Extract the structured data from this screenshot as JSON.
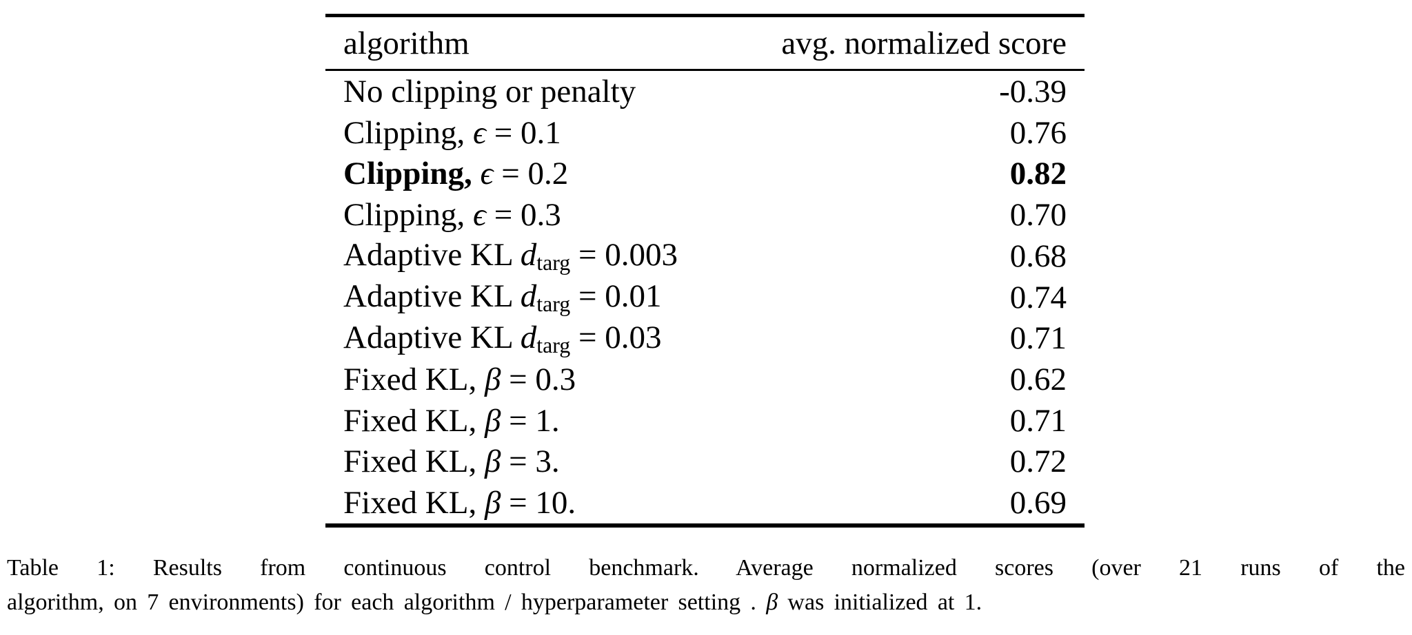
{
  "page": {
    "background": "#ffffff",
    "text_color": "#000000",
    "rule_color": "#000000"
  },
  "table": {
    "header": {
      "algorithm": "algorithm",
      "score": "avg. normalized score"
    },
    "rows": [
      {
        "algorithm": [
          {
            "t": "No clipping or penalty",
            "s": "plain"
          }
        ],
        "score": "-0.39",
        "score_bold": false
      },
      {
        "algorithm": [
          {
            "t": "Clipping, ",
            "s": "plain"
          },
          {
            "t": "ϵ",
            "s": "math"
          },
          {
            "t": " = 0.1",
            "s": "plain"
          }
        ],
        "score": "0.76",
        "score_bold": false
      },
      {
        "algorithm": [
          {
            "t": "Clipping, ",
            "s": "plain",
            "b": true
          },
          {
            "t": "ϵ",
            "s": "math"
          },
          {
            "t": " = 0.2",
            "s": "plain"
          }
        ],
        "score": "0.82",
        "score_bold": true
      },
      {
        "algorithm": [
          {
            "t": "Clipping, ",
            "s": "plain"
          },
          {
            "t": "ϵ",
            "s": "math"
          },
          {
            "t": " = 0.3",
            "s": "plain"
          }
        ],
        "score": "0.70",
        "score_bold": false
      },
      {
        "algorithm": [
          {
            "t": "Adaptive KL ",
            "s": "plain"
          },
          {
            "t": "d",
            "s": "math"
          },
          {
            "t": "targ",
            "s": "sub"
          },
          {
            "t": " = 0.003",
            "s": "plain"
          }
        ],
        "score": "0.68",
        "score_bold": false
      },
      {
        "algorithm": [
          {
            "t": "Adaptive KL ",
            "s": "plain"
          },
          {
            "t": "d",
            "s": "math"
          },
          {
            "t": "targ",
            "s": "sub"
          },
          {
            "t": " = 0.01",
            "s": "plain"
          }
        ],
        "score": "0.74",
        "score_bold": false
      },
      {
        "algorithm": [
          {
            "t": "Adaptive KL ",
            "s": "plain"
          },
          {
            "t": "d",
            "s": "math"
          },
          {
            "t": "targ",
            "s": "sub"
          },
          {
            "t": " = 0.03",
            "s": "plain"
          }
        ],
        "score": "0.71",
        "score_bold": false
      },
      {
        "algorithm": [
          {
            "t": "Fixed KL, ",
            "s": "plain"
          },
          {
            "t": "β",
            "s": "math"
          },
          {
            "t": " = 0.3",
            "s": "plain"
          }
        ],
        "score": "0.62",
        "score_bold": false
      },
      {
        "algorithm": [
          {
            "t": "Fixed KL, ",
            "s": "plain"
          },
          {
            "t": "β",
            "s": "math"
          },
          {
            "t": " = 1.",
            "s": "plain"
          }
        ],
        "score": "0.71",
        "score_bold": false
      },
      {
        "algorithm": [
          {
            "t": "Fixed KL, ",
            "s": "plain"
          },
          {
            "t": "β",
            "s": "math"
          },
          {
            "t": " = 3.",
            "s": "plain"
          }
        ],
        "score": "0.72",
        "score_bold": false
      },
      {
        "algorithm": [
          {
            "t": "Fixed KL, ",
            "s": "plain"
          },
          {
            "t": "β",
            "s": "math"
          },
          {
            "t": " = 10.",
            "s": "plain"
          }
        ],
        "score": "0.69",
        "score_bold": false
      }
    ]
  },
  "caption": {
    "line1": [
      {
        "t": "Table 1:  Results from continuous control benchmark.  Average normalized scores (over 21 runs of the",
        "s": "plain"
      }
    ],
    "line2": [
      {
        "t": "algorithm, on 7 environments) for each algorithm / hyperparameter setting . ",
        "s": "plain"
      },
      {
        "t": "β",
        "s": "math"
      },
      {
        "t": " was initialized at 1.",
        "s": "plain"
      }
    ]
  },
  "chart_data": {
    "type": "table",
    "title": "Table 1: Results from continuous control benchmark",
    "columns": [
      "algorithm",
      "avg. normalized score"
    ],
    "categories": [
      "No clipping or penalty",
      "Clipping, ϵ = 0.1",
      "Clipping, ϵ = 0.2",
      "Clipping, ϵ = 0.3",
      "Adaptive KL d_targ = 0.003",
      "Adaptive KL d_targ = 0.01",
      "Adaptive KL d_targ = 0.03",
      "Fixed KL, β = 0.3",
      "Fixed KL, β = 1.",
      "Fixed KL, β = 3.",
      "Fixed KL, β = 10."
    ],
    "values": [
      -0.39,
      0.76,
      0.82,
      0.7,
      0.68,
      0.74,
      0.71,
      0.62,
      0.71,
      0.72,
      0.69
    ],
    "bold_row_index": 2
  }
}
